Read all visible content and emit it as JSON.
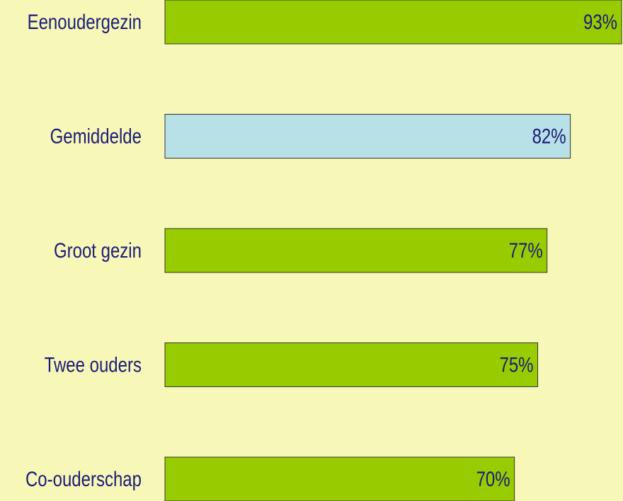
{
  "chart_data": {
    "type": "barh",
    "categories": [
      "Eenoudergezin",
      "Gemiddelde",
      "Groot gezin",
      "Twee ouders",
      "Co-ouderschap"
    ],
    "values": [
      93,
      82,
      77,
      75,
      70
    ],
    "value_labels": [
      "93%",
      "82%",
      "77%",
      "75%",
      "70%"
    ],
    "colors": [
      "#99cc00",
      "#b7e1e6",
      "#99cc00",
      "#99cc00",
      "#99cc00"
    ],
    "xlim": [
      -5,
      93
    ]
  }
}
